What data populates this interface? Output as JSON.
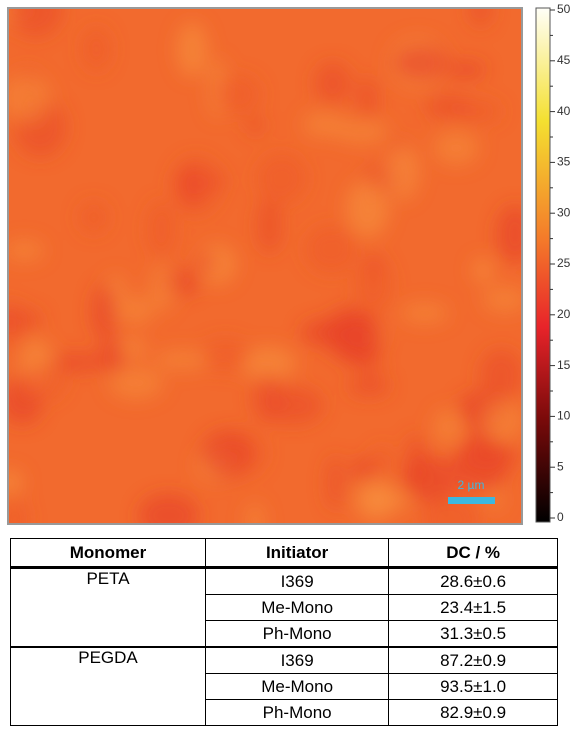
{
  "colorbar": {
    "lim": [
      0,
      50
    ],
    "ticks": [
      0,
      5,
      10,
      15,
      20,
      25,
      30,
      35,
      40,
      45,
      50
    ]
  },
  "scale_bar": {
    "label": "2 µm"
  },
  "table": {
    "headers": [
      "Monomer",
      "Initiator",
      "DC / %"
    ],
    "groups": [
      {
        "monomer": "PETA",
        "rows": [
          [
            "I369",
            "28.6±0.6"
          ],
          [
            "Me-Mono",
            "23.4±1.5"
          ],
          [
            "Ph-Mono",
            "31.3±0.5"
          ]
        ]
      },
      {
        "monomer": "PEGDA",
        "rows": [
          [
            "I369",
            "87.2±0.9"
          ],
          [
            "Me-Mono",
            "93.5±1.0"
          ],
          [
            "Ph-Mono",
            "82.9±0.9"
          ]
        ]
      }
    ]
  }
}
